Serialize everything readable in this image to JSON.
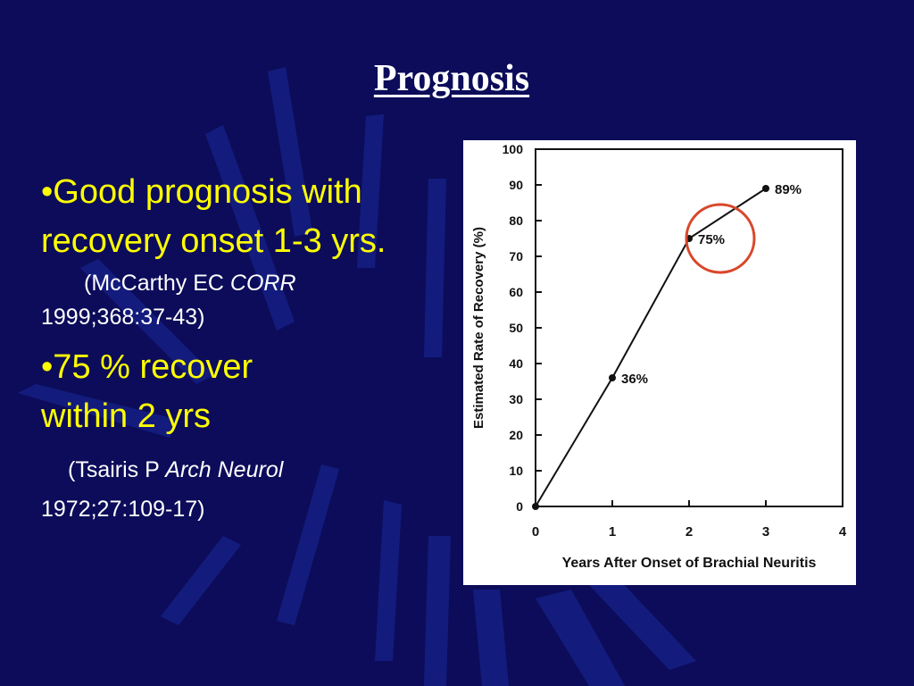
{
  "slide": {
    "title": "Prognosis",
    "bullets": [
      {
        "text": "•Good prognosis with recovery onset 1-3 yrs.",
        "citation": {
          "authors": "(McCarthy EC ",
          "journal": "CORR",
          "details": "1999;368:37-43)"
        }
      },
      {
        "text": "•75 % recover within 2 yrs",
        "citation": {
          "authors": "(Tsairis P ",
          "journal": "Arch Neurol",
          "details": "1972;27:109-17)"
        }
      }
    ],
    "colors": {
      "background": "#0c0c5a",
      "bullet_text": "#ffff00",
      "citation_text": "#ffffff",
      "highlight_circle": "#d9472b"
    }
  },
  "chart_data": {
    "type": "line",
    "xlabel": "Years After Onset of Brachial Neuritis",
    "ylabel": "Estimated Rate of Recovery (%)",
    "xlim": [
      0,
      4
    ],
    "ylim": [
      0,
      100
    ],
    "x_ticks": [
      0,
      1,
      2,
      3,
      4
    ],
    "y_ticks": [
      0,
      10,
      20,
      30,
      40,
      50,
      60,
      70,
      80,
      90,
      100
    ],
    "grid": false,
    "points": [
      {
        "x": 0,
        "y": 0,
        "label": ""
      },
      {
        "x": 1,
        "y": 36,
        "label": "36%"
      },
      {
        "x": 2,
        "y": 75,
        "label": "75%"
      },
      {
        "x": 3,
        "y": 89,
        "label": "89%"
      }
    ],
    "highlight": {
      "x": 2,
      "y": 75
    }
  }
}
